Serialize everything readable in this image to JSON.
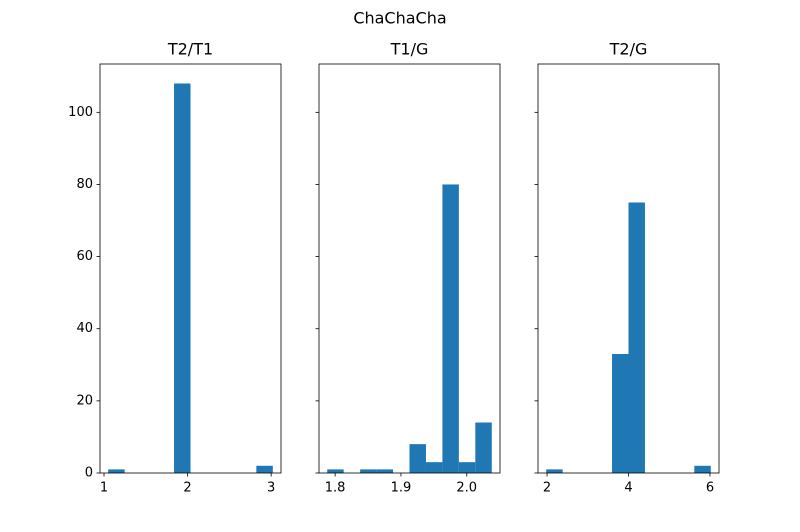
{
  "title": "ChaChaCha",
  "chart_data": [
    {
      "type": "histogram",
      "title": "T2/T1",
      "color": "#1f77b4",
      "bins": [
        1.05,
        1.247,
        1.444,
        1.641,
        1.838,
        2.035,
        2.232,
        2.429,
        2.626,
        2.823,
        3.02
      ],
      "values": [
        1,
        0,
        0,
        0,
        108,
        0,
        0,
        0,
        0,
        2
      ],
      "xlim": [
        0.952,
        3.118
      ],
      "xticks": [
        1,
        2,
        3
      ],
      "ylim": [
        0,
        113.4
      ],
      "yticks": [
        0,
        20,
        40,
        60,
        80,
        100
      ]
    },
    {
      "type": "histogram",
      "title": "T1/G",
      "color": "#1f77b4",
      "bins": [
        1.788,
        1.813,
        1.838,
        1.863,
        1.888,
        1.913,
        1.938,
        1.963,
        1.988,
        2.013,
        2.038
      ],
      "values": [
        1,
        0,
        1,
        1,
        0,
        8,
        3,
        80,
        3,
        14
      ],
      "xlim": [
        1.7755,
        2.0505
      ],
      "xticks": [
        1.8,
        1.9,
        {
          "value": 2,
          "label": "2.0"
        }
      ],
      "ylim": [
        0,
        113.4
      ],
      "yticks": [
        0,
        20,
        40,
        60,
        80,
        100
      ]
    },
    {
      "type": "histogram",
      "title": "T2/G",
      "color": "#1f77b4",
      "bins": [
        1.98,
        2.384,
        2.788,
        3.192,
        3.596,
        4.0,
        4.404,
        4.808,
        5.212,
        5.616,
        6.02
      ],
      "values": [
        1,
        0,
        0,
        0,
        33,
        75,
        0,
        0,
        0,
        2
      ],
      "xlim": [
        1.778,
        6.222
      ],
      "xticks": [
        2,
        4,
        6
      ],
      "ylim": [
        0,
        113.4
      ],
      "yticks": [
        0,
        20,
        40,
        60,
        80,
        100
      ]
    }
  ]
}
